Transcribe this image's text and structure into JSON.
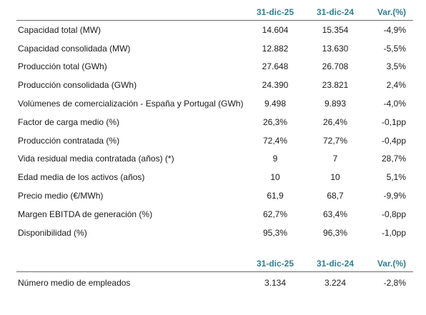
{
  "main_table": {
    "headers": [
      "31-dic-25",
      "31-dic-24",
      "Var.(%)"
    ],
    "rows": [
      {
        "label": "Capacidad total (MW)",
        "v25": "14.604",
        "v24": "15.354",
        "var": "-4,9%"
      },
      {
        "label": "Capacidad consolidada (MW)",
        "v25": "12.882",
        "v24": "13.630",
        "var": "-5,5%"
      },
      {
        "label": "Producción total (GWh)",
        "v25": "27.648",
        "v24": "26.708",
        "var": "3,5%"
      },
      {
        "label": "Producción consolidada (GWh)",
        "v25": "24.390",
        "v24": "23.821",
        "var": "2,4%"
      },
      {
        "label": "Volúmenes de comercialización - España y Portugal (GWh)",
        "v25": "9.498",
        "v24": "9.893",
        "var": "-4,0%"
      },
      {
        "label": "Factor de carga medio (%)",
        "v25": "26,3%",
        "v24": "26,4%",
        "var": "-0,1pp"
      },
      {
        "label": "Producción contratada (%)",
        "v25": "72,4%",
        "v24": "72,7%",
        "var": "-0,4pp"
      },
      {
        "label": "Vida residual media contratada (años) (*)",
        "v25": "9",
        "v24": "7",
        "var": "28,7%"
      },
      {
        "label": "Edad media de los activos (años)",
        "v25": "10",
        "v24": "10",
        "var": "5,1%"
      },
      {
        "label": "Precio medio (€/MWh)",
        "v25": "61,9",
        "v24": "68,7",
        "var": "-9,9%"
      },
      {
        "label": "Margen EBITDA de generación (%)",
        "v25": "62,7%",
        "v24": "63,4%",
        "var": "-0,8pp"
      },
      {
        "label": "Disponibilidad (%)",
        "v25": "95,3%",
        "v24": "96,3%",
        "var": "-1,0pp"
      }
    ]
  },
  "employees_table": {
    "headers": [
      "31-dic-25",
      "31-dic-24",
      "Var.(%)"
    ],
    "rows": [
      {
        "label": "Número medio de empleados",
        "v25": "3.134",
        "v24": "3.224",
        "var": "-2,8%"
      }
    ]
  },
  "colors": {
    "header_text": "#2f7f8f",
    "rule": "#6a6a6a"
  }
}
